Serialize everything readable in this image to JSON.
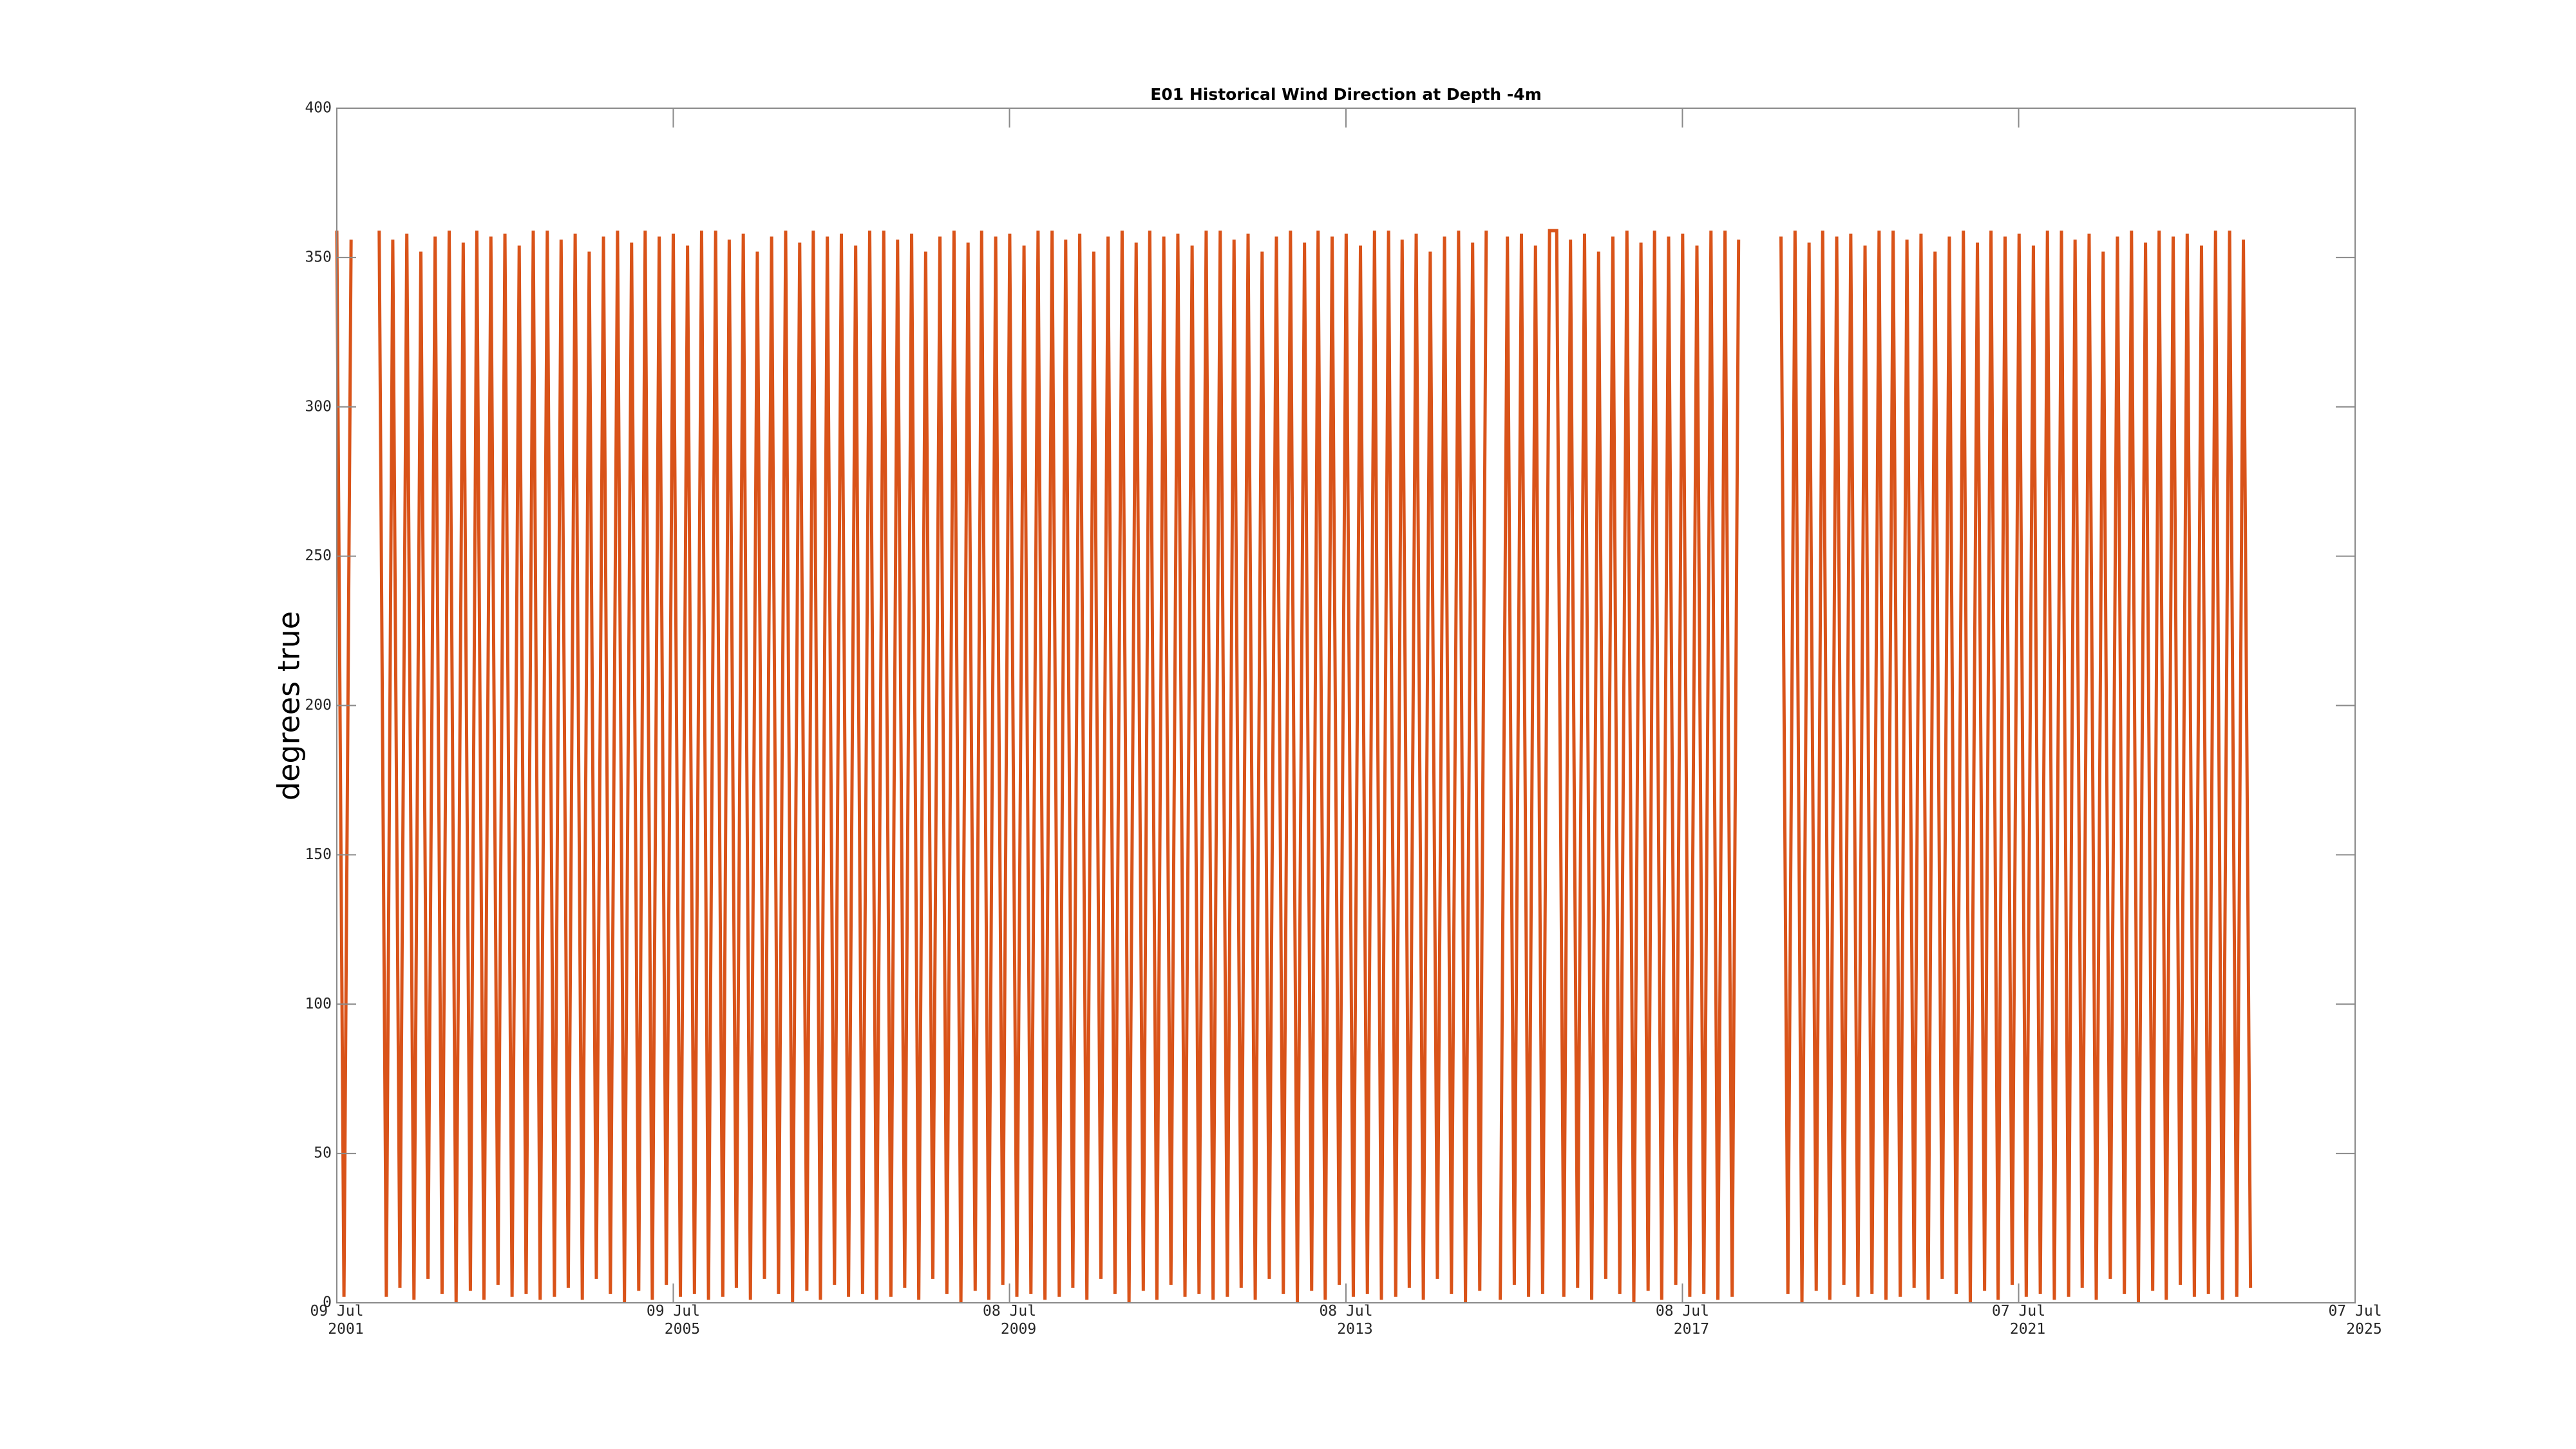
{
  "chart_data": {
    "type": "line",
    "title": "E01 Historical Wind Direction at Depth -4m",
    "ylabel": "degrees true",
    "xlim": [
      "2001-07-09",
      "2025-07-07"
    ],
    "xticks": [
      {
        "value": "2001-07-09",
        "label": "09 Jul 2001"
      },
      {
        "value": "2005-07-09",
        "label": "09 Jul 2005"
      },
      {
        "value": "2009-07-08",
        "label": "08 Jul 2009"
      },
      {
        "value": "2013-07-08",
        "label": "08 Jul 2013"
      },
      {
        "value": "2017-07-08",
        "label": "08 Jul 2017"
      },
      {
        "value": "2021-07-07",
        "label": "07 Jul 2021"
      },
      {
        "value": "2025-07-07",
        "label": "07 Jul 2025"
      }
    ],
    "ylim": [
      0,
      400
    ],
    "yticks": [
      0,
      50,
      100,
      150,
      200,
      250,
      300,
      350,
      400
    ],
    "x": [
      "2001-07-09",
      "2001-08-09",
      "2001-09-09",
      "2001-11-09",
      "2002-01-09",
      "2002-02-09",
      "2002-03-09",
      "2002-04-09",
      "2002-05-09",
      "2002-06-09",
      "2002-07-09",
      "2002-08-09",
      "2002-09-09",
      "2002-10-09",
      "2002-11-09",
      "2002-12-09",
      "2003-01-09",
      "2003-02-09",
      "2003-03-09",
      "2003-04-09",
      "2003-05-09",
      "2003-06-09",
      "2003-07-09",
      "2003-08-09",
      "2003-09-09",
      "2003-10-09",
      "2003-11-09",
      "2003-12-09",
      "2004-01-09",
      "2004-02-09",
      "2004-03-09",
      "2004-04-09",
      "2004-05-09",
      "2004-06-09",
      "2004-07-09",
      "2004-08-09",
      "2004-09-09",
      "2004-10-09",
      "2004-11-09",
      "2004-12-09",
      "2005-01-09",
      "2005-02-09",
      "2005-03-09",
      "2005-04-09",
      "2005-05-09",
      "2005-06-09",
      "2005-07-09",
      "2005-08-09",
      "2005-09-09",
      "2005-10-09",
      "2005-11-09",
      "2005-12-09",
      "2006-01-09",
      "2006-02-09",
      "2006-03-09",
      "2006-04-09",
      "2006-05-09",
      "2006-06-09",
      "2006-07-09",
      "2006-08-09",
      "2006-09-09",
      "2006-10-09",
      "2006-11-09",
      "2006-12-09",
      "2007-01-09",
      "2007-02-09",
      "2007-03-09",
      "2007-04-09",
      "2007-05-09",
      "2007-06-09",
      "2007-07-09",
      "2007-08-09",
      "2007-09-09",
      "2007-10-09",
      "2007-11-09",
      "2007-12-09",
      "2008-01-09",
      "2008-02-09",
      "2008-03-09",
      "2008-04-09",
      "2008-05-09",
      "2008-06-09",
      "2008-07-09",
      "2008-08-09",
      "2008-09-09",
      "2008-10-09",
      "2008-11-09",
      "2008-12-09",
      "2009-01-09",
      "2009-02-09",
      "2009-03-09",
      "2009-04-09",
      "2009-05-09",
      "2009-06-09",
      "2009-07-09",
      "2009-08-09",
      "2009-09-09",
      "2009-10-09",
      "2009-11-09",
      "2009-12-09",
      "2010-01-09",
      "2010-02-09",
      "2010-03-09",
      "2010-04-09",
      "2010-05-09",
      "2010-06-09",
      "2010-07-09",
      "2010-08-09",
      "2010-09-09",
      "2010-10-09",
      "2010-11-09",
      "2010-12-09",
      "2011-01-09",
      "2011-02-09",
      "2011-03-09",
      "2011-04-09",
      "2011-05-09",
      "2011-06-09",
      "2011-07-09",
      "2011-08-09",
      "2011-09-09",
      "2011-10-09",
      "2011-11-09",
      "2011-12-09",
      "2012-01-09",
      "2012-02-09",
      "2012-03-09",
      "2012-04-09",
      "2012-05-09",
      "2012-06-09",
      "2012-07-09",
      "2012-08-09",
      "2012-09-09",
      "2012-10-09",
      "2012-11-09",
      "2012-12-09",
      "2013-01-09",
      "2013-02-09",
      "2013-03-09",
      "2013-04-09",
      "2013-05-09",
      "2013-06-09",
      "2013-07-09",
      "2013-08-09",
      "2013-09-09",
      "2013-10-09",
      "2013-11-09",
      "2013-12-09",
      "2014-01-09",
      "2014-02-09",
      "2014-03-09",
      "2014-04-09",
      "2014-05-09",
      "2014-06-09",
      "2014-07-09",
      "2014-08-09",
      "2014-09-09",
      "2014-10-09",
      "2014-11-09",
      "2014-12-09",
      "2015-01-09",
      "2015-02-09",
      "2015-03-09",
      "2015-04-09",
      "2015-05-09",
      "2015-06-09",
      "2015-07-09",
      "2015-08-09",
      "2015-09-09",
      "2015-10-09",
      "2015-11-09",
      "2015-12-09",
      "2016-01-09",
      "2016-02-09",
      "2016-03-09",
      "2016-04-09",
      "2016-05-09",
      "2016-06-09",
      "2016-07-09",
      "2016-08-09",
      "2016-09-09",
      "2016-10-09",
      "2016-11-09",
      "2016-12-09",
      "2017-01-09",
      "2017-02-09",
      "2017-03-09",
      "2017-04-09",
      "2017-05-09",
      "2017-06-09",
      "2017-07-09",
      "2017-08-09",
      "2017-09-09",
      "2017-10-09",
      "2017-11-09",
      "2017-12-09",
      "2018-01-09",
      "2018-02-09",
      "2018-03-09",
      "2018-06-09",
      "2018-09-09",
      "2018-10-09",
      "2018-11-09",
      "2018-12-09",
      "2019-01-09",
      "2019-02-09",
      "2019-03-09",
      "2019-04-09",
      "2019-05-09",
      "2019-06-09",
      "2019-07-09",
      "2019-08-09",
      "2019-09-09",
      "2019-10-09",
      "2019-11-09",
      "2019-12-09",
      "2020-01-09",
      "2020-02-09",
      "2020-03-09",
      "2020-04-09",
      "2020-05-09",
      "2020-06-09",
      "2020-07-09",
      "2020-08-09",
      "2020-09-09",
      "2020-10-09",
      "2020-11-09",
      "2020-12-09",
      "2021-01-09",
      "2021-02-09",
      "2021-03-09",
      "2021-04-09",
      "2021-05-09",
      "2021-06-09",
      "2021-07-09",
      "2021-08-09",
      "2021-09-09",
      "2021-10-09",
      "2021-11-09",
      "2021-12-09",
      "2022-01-09",
      "2022-02-09",
      "2022-03-09",
      "2022-04-09",
      "2022-05-09",
      "2022-06-09",
      "2022-07-09",
      "2022-08-09",
      "2022-09-09",
      "2022-10-09",
      "2022-11-09",
      "2022-12-09",
      "2023-01-09",
      "2023-02-09",
      "2023-03-09",
      "2023-04-09",
      "2023-05-09",
      "2023-06-09",
      "2023-07-09",
      "2023-08-09",
      "2023-09-09",
      "2023-10-09",
      "2023-11-09",
      "2023-12-09",
      "2024-01-09",
      "2024-02-09",
      "2024-03-09",
      "2024-04-09"
    ],
    "series": [
      {
        "color": "#d95319",
        "values": [
          359,
          2,
          356,
          null,
          359,
          2,
          356,
          5,
          358,
          1,
          352,
          8,
          357,
          3,
          359,
          0,
          355,
          4,
          359,
          1,
          357,
          6,
          358,
          2,
          354,
          3,
          359,
          1,
          359,
          2,
          356,
          5,
          358,
          1,
          352,
          8,
          357,
          3,
          359,
          0,
          355,
          4,
          359,
          1,
          357,
          6,
          358,
          2,
          354,
          3,
          359,
          1,
          359,
          2,
          356,
          5,
          358,
          1,
          352,
          8,
          357,
          3,
          359,
          0,
          355,
          4,
          359,
          1,
          357,
          6,
          358,
          2,
          354,
          3,
          359,
          1,
          359,
          2,
          356,
          5,
          358,
          1,
          352,
          8,
          357,
          3,
          359,
          0,
          355,
          4,
          359,
          1,
          357,
          6,
          358,
          2,
          354,
          3,
          359,
          1,
          359,
          2,
          356,
          5,
          358,
          1,
          352,
          8,
          357,
          3,
          359,
          0,
          355,
          4,
          359,
          1,
          357,
          6,
          358,
          2,
          354,
          3,
          359,
          1,
          359,
          2,
          356,
          5,
          358,
          1,
          352,
          8,
          357,
          3,
          359,
          0,
          355,
          4,
          359,
          1,
          357,
          6,
          358,
          2,
          354,
          3,
          359,
          1,
          359,
          2,
          356,
          5,
          358,
          1,
          352,
          8,
          357,
          3,
          359,
          0,
          355,
          4,
          359,
          null,
          1,
          357,
          6,
          358,
          2,
          354,
          3,
          359,
          359,
          2,
          356,
          5,
          358,
          1,
          352,
          8,
          357,
          3,
          359,
          0,
          355,
          4,
          359,
          1,
          357,
          6,
          358,
          2,
          354,
          3,
          359,
          1,
          359,
          2,
          356,
          null,
          357,
          3,
          359,
          0,
          355,
          4,
          359,
          1,
          357,
          6,
          358,
          2,
          354,
          3,
          359,
          1,
          359,
          2,
          356,
          5,
          358,
          1,
          352,
          8,
          357,
          3,
          359,
          0,
          355,
          4,
          359,
          1,
          357,
          6,
          358,
          2,
          354,
          3,
          359,
          1,
          359,
          2,
          356,
          5,
          358,
          1,
          352,
          8,
          357,
          3,
          359,
          0,
          355,
          4,
          359,
          1,
          357,
          6,
          358,
          2,
          354,
          3,
          359,
          1,
          359,
          2,
          356,
          5
        ]
      }
    ]
  }
}
